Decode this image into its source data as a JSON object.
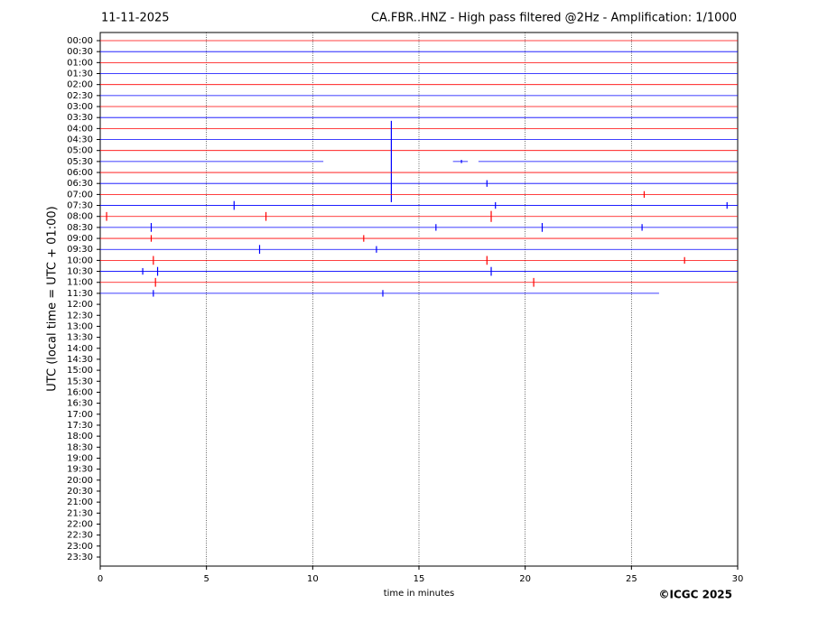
{
  "chart_data": {
    "type": "helicorder",
    "date": "11-11-2025",
    "title": "CA.FBR..HNZ - High pass filtered @2Hz - Amplification: 1/1000",
    "ylabel": "UTC (local time = UTC + 01:00)",
    "xlabel": "time in minutes",
    "copyright": "©ICGC 2025",
    "xlim": [
      0,
      30
    ],
    "xticks": [
      0,
      5,
      10,
      15,
      20,
      25,
      30
    ],
    "grid": true,
    "categories": [
      "00:00",
      "00:30",
      "01:00",
      "01:30",
      "02:00",
      "02:30",
      "03:00",
      "03:30",
      "04:00",
      "04:30",
      "05:00",
      "05:30",
      "06:00",
      "06:30",
      "07:00",
      "07:30",
      "08:00",
      "08:30",
      "09:00",
      "09:30",
      "10:00",
      "10:30",
      "11:00",
      "11:30",
      "12:00",
      "12:30",
      "13:00",
      "13:30",
      "14:00",
      "14:30",
      "15:00",
      "15:30",
      "16:00",
      "16:30",
      "17:00",
      "17:30",
      "18:00",
      "18:30",
      "19:00",
      "19:30",
      "20:00",
      "20:30",
      "21:00",
      "21:30",
      "22:00",
      "22:30",
      "23:00",
      "23:30"
    ],
    "traces": [
      {
        "color": "#ff0000",
        "segments": [
          [
            0,
            30
          ]
        ],
        "bursts": []
      },
      {
        "color": "#0000ff",
        "segments": [
          [
            0,
            30
          ]
        ],
        "bursts": []
      },
      {
        "color": "#ff0000",
        "segments": [
          [
            0,
            30
          ]
        ],
        "bursts": []
      },
      {
        "color": "#0000ff",
        "segments": [
          [
            0,
            30
          ]
        ],
        "bursts": []
      },
      {
        "color": "#ff0000",
        "segments": [
          [
            0,
            30
          ]
        ],
        "bursts": []
      },
      {
        "color": "#0000ff",
        "segments": [
          [
            0,
            30
          ]
        ],
        "bursts": []
      },
      {
        "color": "#ff0000",
        "segments": [
          [
            0,
            30
          ]
        ],
        "bursts": []
      },
      {
        "color": "#0000ff",
        "segments": [
          [
            0,
            30
          ]
        ],
        "bursts": []
      },
      {
        "color": "#ff0000",
        "segments": [
          [
            0,
            30
          ]
        ],
        "bursts": []
      },
      {
        "color": "#0000ff",
        "segments": [
          [
            0,
            30
          ]
        ],
        "bursts": []
      },
      {
        "color": "#ff0000",
        "segments": [
          [
            0,
            30
          ]
        ],
        "bursts": []
      },
      {
        "color": "#0000ff",
        "segments": [
          [
            0,
            10.5
          ],
          [
            16.6,
            17.3
          ],
          [
            17.8,
            30
          ]
        ],
        "bursts": [
          {
            "x": 13.7,
            "amp": 3.7
          },
          {
            "x": 17.0,
            "amp": 0.15
          }
        ]
      },
      {
        "color": "#ff0000",
        "segments": [
          [
            0,
            30
          ]
        ],
        "bursts": []
      },
      {
        "color": "#0000ff",
        "segments": [
          [
            0,
            30
          ]
        ],
        "bursts": [
          {
            "x": 18.2,
            "amp": 0.3
          }
        ]
      },
      {
        "color": "#ff0000",
        "segments": [
          [
            0,
            30
          ]
        ],
        "bursts": [
          {
            "x": 25.6,
            "amp": 0.3
          }
        ]
      },
      {
        "color": "#0000ff",
        "segments": [
          [
            0,
            30
          ]
        ],
        "bursts": [
          {
            "x": 6.3,
            "amp": 0.4
          },
          {
            "x": 18.6,
            "amp": 0.3
          },
          {
            "x": 29.5,
            "amp": 0.3
          }
        ]
      },
      {
        "color": "#ff0000",
        "segments": [
          [
            0,
            30
          ]
        ],
        "bursts": [
          {
            "x": 0.3,
            "amp": 0.4
          },
          {
            "x": 7.8,
            "amp": 0.4
          },
          {
            "x": 18.4,
            "amp": 0.5
          }
        ]
      },
      {
        "color": "#0000ff",
        "segments": [
          [
            0,
            30
          ]
        ],
        "bursts": [
          {
            "x": 2.4,
            "amp": 0.4
          },
          {
            "x": 15.8,
            "amp": 0.3
          },
          {
            "x": 20.8,
            "amp": 0.4
          },
          {
            "x": 25.5,
            "amp": 0.3
          }
        ]
      },
      {
        "color": "#ff0000",
        "segments": [
          [
            0,
            30
          ]
        ],
        "bursts": [
          {
            "x": 2.4,
            "amp": 0.3
          },
          {
            "x": 12.4,
            "amp": 0.3
          }
        ]
      },
      {
        "color": "#0000ff",
        "segments": [
          [
            0,
            30
          ]
        ],
        "bursts": [
          {
            "x": 7.5,
            "amp": 0.4
          },
          {
            "x": 13.0,
            "amp": 0.3
          }
        ]
      },
      {
        "color": "#ff0000",
        "segments": [
          [
            0,
            30
          ]
        ],
        "bursts": [
          {
            "x": 2.5,
            "amp": 0.4
          },
          {
            "x": 18.2,
            "amp": 0.4
          },
          {
            "x": 27.5,
            "amp": 0.3
          }
        ]
      },
      {
        "color": "#0000ff",
        "segments": [
          [
            0,
            30
          ]
        ],
        "bursts": [
          {
            "x": 2.0,
            "amp": 0.3
          },
          {
            "x": 2.7,
            "amp": 0.4
          },
          {
            "x": 18.4,
            "amp": 0.4
          }
        ]
      },
      {
        "color": "#ff0000",
        "segments": [
          [
            0,
            30
          ]
        ],
        "bursts": [
          {
            "x": 2.6,
            "amp": 0.4
          },
          {
            "x": 20.4,
            "amp": 0.4
          }
        ]
      },
      {
        "color": "#0000ff",
        "segments": [
          [
            0,
            26.3
          ]
        ],
        "bursts": [
          {
            "x": 2.5,
            "amp": 0.3
          },
          {
            "x": 13.3,
            "amp": 0.3
          }
        ]
      }
    ]
  }
}
